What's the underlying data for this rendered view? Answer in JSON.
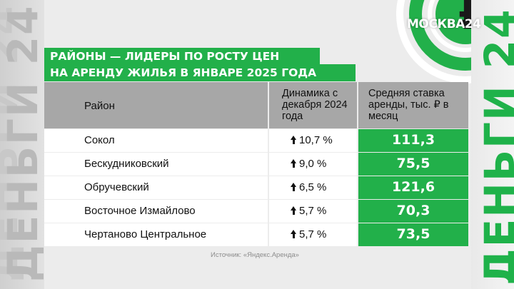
{
  "side": {
    "left_text": "ДЕНЬГИ 24",
    "right_text": "ДЕНЬГИ 24"
  },
  "logo": {
    "text": "МОСКВА24"
  },
  "title": {
    "line1": "РАЙОНЫ — ЛИДЕРЫ ПО РОСТУ ЦЕН",
    "line2": "НА АРЕНДУ ЖИЛЬЯ В ЯНВАРЕ 2025 ГОДА"
  },
  "table": {
    "headers": {
      "district": "Район",
      "change": "Динамика с декабря 2024 года",
      "rate": "Средняя ставка аренды, тыс. ₽ в месяц"
    },
    "rows": [
      {
        "district": "Сокол",
        "change": "10,7 %",
        "rate": "111,3"
      },
      {
        "district": "Бескудниковский",
        "change": "9,0 %",
        "rate": "75,5"
      },
      {
        "district": "Обручевский",
        "change": "6,5 %",
        "rate": "121,6"
      },
      {
        "district": "Восточное Измайлово",
        "change": "5,7 %",
        "rate": "70,3"
      },
      {
        "district": "Чертаново Центральное",
        "change": "5,7 %",
        "rate": "73,5"
      }
    ]
  },
  "source": "Источник: «Яндекс.Аренда»",
  "colors": {
    "accent": "#22b04a",
    "header_bg": "#a7a7a7",
    "panel_bg": "#ececec"
  }
}
